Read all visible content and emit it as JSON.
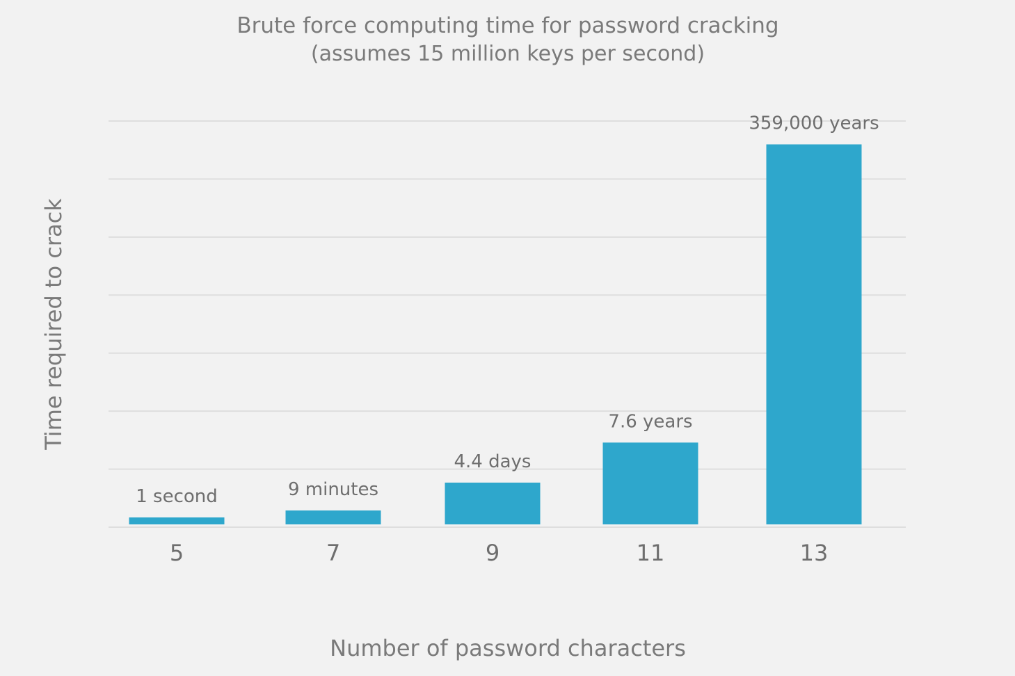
{
  "chart_data": {
    "type": "bar",
    "title": "Brute force computing time for password cracking",
    "subtitle": "(assumes 15 million keys per second)",
    "xlabel": "Number of password characters",
    "ylabel": "Time required to crack",
    "categories": [
      "5",
      "7",
      "9",
      "11",
      "13"
    ],
    "values": [
      0.12,
      0.24,
      0.72,
      1.41,
      6.55
    ],
    "value_labels": [
      "1 second",
      "9 minutes",
      "4.4 days",
      "7.6 years",
      "359,000 years"
    ],
    "ylim": [
      0,
      7
    ],
    "grid": true,
    "bar_color": "#2ea7cc",
    "background": "#f2f2f2"
  }
}
